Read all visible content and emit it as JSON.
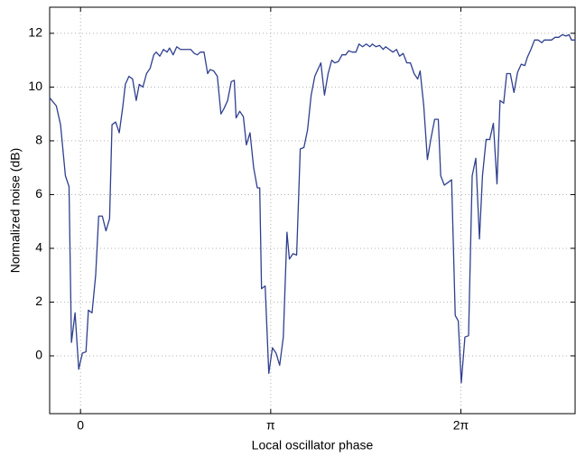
{
  "chart_data": {
    "type": "line",
    "xlabel": "Local oscillator phase",
    "ylabel": "Normalized noise (dB)",
    "xlim": [
      -0.51,
      8.17
    ],
    "ylim": [
      -2.15,
      12.97
    ],
    "xticks": [
      0,
      {
        "value": 3.14159,
        "label": "π"
      },
      {
        "value": 6.28319,
        "label": "2π"
      }
    ],
    "yticks": [
      0,
      2,
      4,
      6,
      8,
      10,
      12
    ],
    "grid": true,
    "x": [
      -0.51,
      -0.4,
      -0.33,
      -0.25,
      -0.19,
      -0.15,
      -0.09,
      -0.03,
      0.03,
      0.09,
      0.13,
      0.19,
      0.25,
      0.3,
      0.36,
      0.42,
      0.48,
      0.52,
      0.58,
      0.64,
      0.7,
      0.74,
      0.8,
      0.86,
      0.92,
      0.97,
      1.03,
      1.09,
      1.15,
      1.21,
      1.25,
      1.31,
      1.37,
      1.43,
      1.47,
      1.53,
      1.59,
      1.65,
      1.71,
      1.76,
      1.82,
      1.88,
      1.93,
      1.98,
      2.04,
      2.1,
      2.14,
      2.2,
      2.26,
      2.32,
      2.37,
      2.43,
      2.49,
      2.54,
      2.57,
      2.63,
      2.69,
      2.74,
      2.8,
      2.86,
      2.92,
      2.96,
      2.99,
      3.05,
      3.11,
      3.17,
      3.23,
      3.29,
      3.35,
      3.41,
      3.45,
      3.51,
      3.57,
      3.63,
      3.69,
      3.75,
      3.81,
      3.87,
      3.91,
      3.97,
      4.03,
      4.09,
      4.15,
      4.2,
      4.26,
      4.32,
      4.38,
      4.43,
      4.49,
      4.55,
      4.6,
      4.66,
      4.72,
      4.78,
      4.82,
      4.88,
      4.94,
      5.0,
      5.04,
      5.1,
      5.16,
      5.22,
      5.27,
      5.33,
      5.39,
      5.45,
      5.51,
      5.57,
      5.61,
      5.67,
      5.73,
      5.79,
      5.85,
      5.91,
      5.95,
      6.01,
      6.07,
      6.13,
      6.19,
      6.24,
      6.29,
      6.35,
      6.41,
      6.47,
      6.53,
      6.59,
      6.64,
      6.7,
      6.76,
      6.82,
      6.88,
      6.93,
      6.99,
      7.04,
      7.1,
      7.16,
      7.22,
      7.28,
      7.34,
      7.38,
      7.44,
      7.5,
      7.56,
      7.62,
      7.66,
      7.72,
      7.78,
      7.84,
      7.9,
      7.96,
      8.02,
      8.07,
      8.11,
      8.17
    ],
    "series": [
      {
        "color": "#2f3f8f",
        "values": [
          9.6,
          9.3,
          8.6,
          6.7,
          6.3,
          0.5,
          1.6,
          -0.5,
          0.1,
          0.15,
          1.7,
          1.6,
          3,
          5.2,
          5.2,
          4.65,
          5.1,
          8.6,
          8.7,
          8.3,
          9.3,
          10.1,
          10.4,
          10.3,
          9.5,
          10.1,
          10,
          10.5,
          10.7,
          11.2,
          11.3,
          11.15,
          11.4,
          11.3,
          11.45,
          11.2,
          11.5,
          11.4,
          11.4,
          11.4,
          11.4,
          11.25,
          11.2,
          11.3,
          11.3,
          10.5,
          10.65,
          10.6,
          10.4,
          9,
          9.2,
          9.5,
          10.2,
          10.25,
          8.85,
          9.1,
          8.9,
          7.85,
          8.3,
          7,
          6.25,
          6.25,
          2.5,
          2.6,
          -0.65,
          0.3,
          0.1,
          -0.35,
          0.7,
          4.6,
          3.6,
          3.8,
          3.75,
          7.7,
          7.75,
          8.4,
          9.7,
          10.4,
          10.6,
          10.9,
          9.7,
          10.5,
          11,
          10.9,
          10.95,
          11.2,
          11.2,
          11.35,
          11.3,
          11.3,
          11.6,
          11.5,
          11.6,
          11.5,
          11.6,
          11.5,
          11.55,
          11.4,
          11.5,
          11.4,
          11.3,
          11.4,
          11.15,
          11.25,
          10.9,
          10.9,
          10.5,
          10.3,
          10.6,
          9.3,
          7.3,
          8.1,
          8.8,
          8.8,
          6.7,
          6.35,
          6.45,
          6.55,
          1.5,
          1.3,
          -1,
          0.7,
          0.75,
          6.7,
          7.35,
          4.35,
          6.7,
          8.05,
          8.05,
          8.65,
          6.4,
          9.5,
          9.4,
          10.5,
          10.5,
          9.8,
          10.55,
          10.85,
          10.8,
          11.1,
          11.4,
          11.75,
          11.75,
          11.65,
          11.75,
          11.75,
          11.75,
          11.85,
          11.85,
          11.95,
          11.9,
          11.95,
          11.75,
          11.75
        ]
      }
    ]
  }
}
